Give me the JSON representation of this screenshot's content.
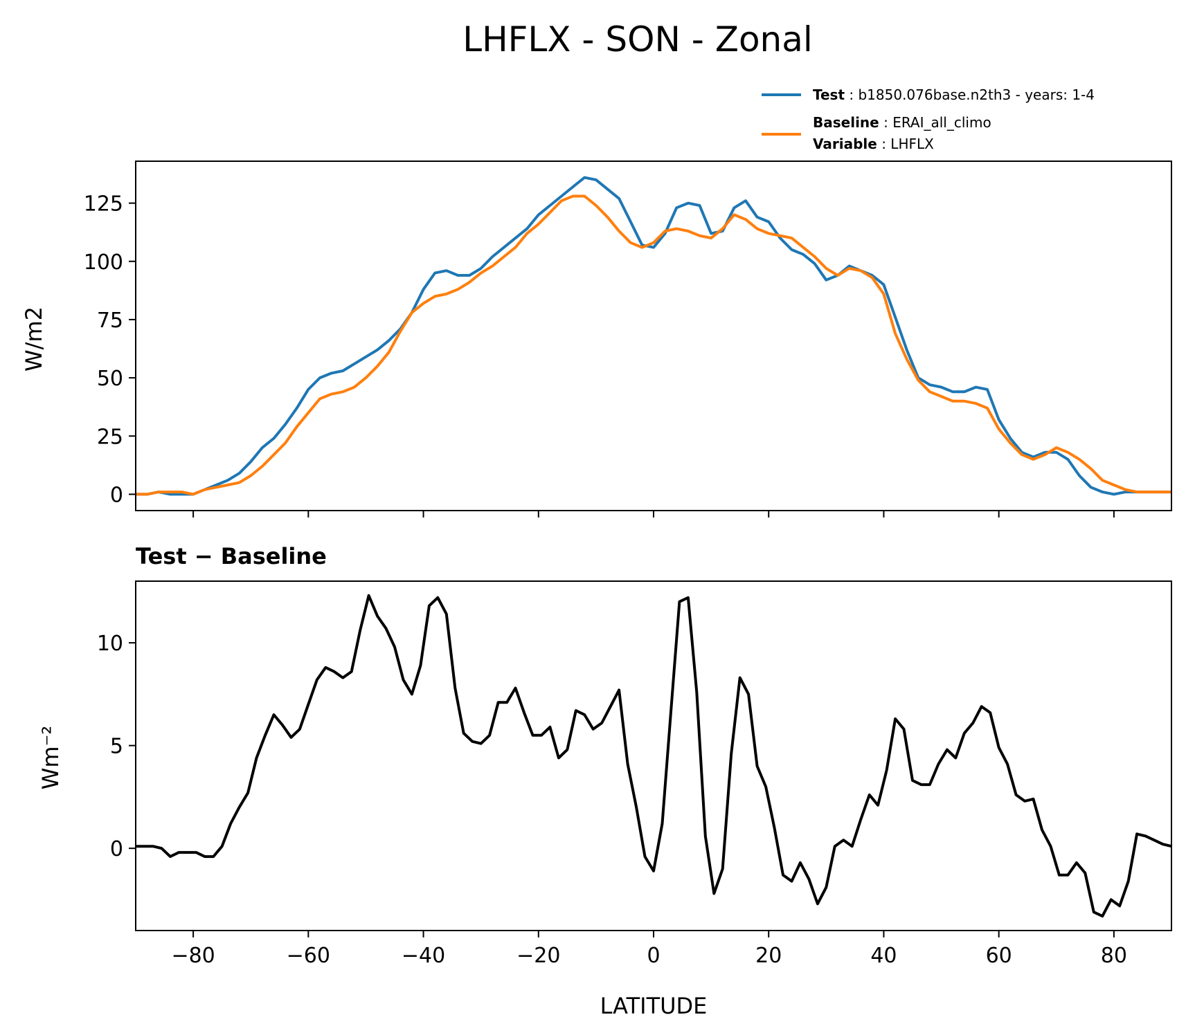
{
  "title": "LHFLX - SON - Zonal",
  "legend": [
    {
      "key": "Test",
      "value": "b1850.076base.n2th3 - years: 1-4",
      "color": "#1f77b4"
    },
    {
      "key": "Baseline",
      "value": "ERAI_all_climo",
      "key2": "Variable",
      "value2": "LHFLX",
      "color": "#ff7f0e"
    }
  ],
  "chart_data": [
    {
      "type": "line",
      "ylabel": "W/m2",
      "xlim": [
        -90,
        90
      ],
      "ylim": [
        -7,
        143
      ],
      "yticks": [
        0,
        25,
        50,
        75,
        100,
        125
      ],
      "yticklabels": [
        "0",
        "25",
        "50",
        "75",
        "100",
        "125"
      ],
      "xticks": [
        -80,
        -60,
        -40,
        -20,
        0,
        20,
        40,
        60,
        80
      ],
      "series": [
        {
          "name": "Test",
          "color": "#1f77b4",
          "x": [
            -90,
            -88,
            -86,
            -84,
            -82,
            -80,
            -78,
            -76,
            -74,
            -72,
            -70,
            -68,
            -66,
            -64,
            -62,
            -60,
            -58,
            -56,
            -54,
            -52,
            -50,
            -48,
            -46,
            -44,
            -42,
            -40,
            -38,
            -36,
            -34,
            -32,
            -30,
            -28,
            -26,
            -24,
            -22,
            -20,
            -18,
            -16,
            -14,
            -12,
            -10,
            -8,
            -6,
            -4,
            -2,
            0,
            2,
            4,
            6,
            8,
            10,
            12,
            14,
            16,
            18,
            20,
            22,
            24,
            26,
            28,
            30,
            32,
            34,
            36,
            38,
            40,
            42,
            44,
            46,
            48,
            50,
            52,
            54,
            56,
            58,
            60,
            62,
            64,
            66,
            68,
            70,
            72,
            74,
            76,
            78,
            80,
            82,
            84,
            86,
            88,
            90
          ],
          "y": [
            0,
            0,
            1,
            0,
            0,
            0,
            2,
            4,
            6,
            9,
            14,
            20,
            24,
            30,
            37,
            45,
            50,
            52,
            53,
            56,
            59,
            62,
            66,
            71,
            78,
            88,
            95,
            96,
            94,
            94,
            97,
            102,
            106,
            110,
            114,
            120,
            124,
            128,
            132,
            136,
            135,
            131,
            127,
            117,
            107,
            106,
            112,
            123,
            125,
            124,
            112,
            113,
            123,
            126,
            119,
            117,
            110,
            105,
            103,
            99,
            92,
            94,
            98,
            96,
            94,
            90,
            76,
            62,
            50,
            47,
            46,
            44,
            44,
            46,
            45,
            32,
            24,
            18,
            16,
            18,
            18,
            15,
            8,
            3,
            1,
            0,
            1,
            1,
            1,
            1,
            1
          ],
          "ytrue": [
            0,
            0,
            0.5,
            0.5,
            0,
            0,
            1.5,
            3.5,
            6,
            9.5,
            14,
            20,
            23,
            29,
            36,
            44,
            50,
            52,
            53,
            57,
            59,
            62,
            66,
            71,
            78,
            86,
            95,
            96,
            94,
            93,
            97,
            102,
            106,
            109,
            113,
            120,
            124,
            128,
            132,
            136,
            135,
            131,
            127,
            117,
            106,
            106,
            112,
            122,
            126,
            124,
            111,
            112,
            123,
            125,
            121,
            116,
            111,
            106,
            104,
            99,
            92,
            94,
            98,
            97,
            95,
            90,
            76,
            60,
            49,
            47,
            46,
            44,
            45,
            46,
            44,
            31,
            23,
            17,
            15,
            18,
            17,
            14,
            7,
            3,
            1,
            0,
            1,
            1,
            1,
            1,
            1
          ]
        },
        {
          "name": "Baseline",
          "color": "#ff7f0e",
          "x": [
            -90,
            -88,
            -86,
            -84,
            -82,
            -80,
            -78,
            -76,
            -74,
            -72,
            -70,
            -68,
            -66,
            -64,
            -62,
            -60,
            -58,
            -56,
            -54,
            -52,
            -50,
            -48,
            -46,
            -44,
            -42,
            -40,
            -38,
            -36,
            -34,
            -32,
            -30,
            -28,
            -26,
            -24,
            -22,
            -20,
            -18,
            -16,
            -14,
            -12,
            -10,
            -8,
            -6,
            -4,
            -2,
            0,
            2,
            4,
            6,
            8,
            10,
            12,
            14,
            16,
            18,
            20,
            22,
            24,
            26,
            28,
            30,
            32,
            34,
            36,
            38,
            40,
            42,
            44,
            46,
            48,
            50,
            52,
            54,
            56,
            58,
            60,
            62,
            64,
            66,
            68,
            70,
            72,
            74,
            76,
            78,
            80,
            82,
            84,
            86,
            88,
            90
          ],
          "y": [
            0,
            0,
            1,
            1,
            1,
            0,
            2,
            3,
            4,
            5,
            8,
            12,
            17,
            22,
            29,
            35,
            41,
            43,
            44,
            46,
            50,
            55,
            61,
            70,
            78,
            82,
            85,
            86,
            88,
            91,
            95,
            98,
            102,
            106,
            112,
            116,
            121,
            126,
            128,
            128,
            124,
            119,
            113,
            108,
            106,
            108,
            113,
            114,
            113,
            111,
            110,
            114,
            120,
            118,
            114,
            112,
            111,
            110,
            106,
            102,
            97,
            94,
            97,
            96,
            93,
            86,
            69,
            58,
            49,
            44,
            42,
            40,
            40,
            39,
            37,
            28,
            22,
            17,
            15,
            17,
            20,
            18,
            15,
            11,
            6,
            4,
            2,
            1,
            1,
            1,
            1
          ]
        }
      ]
    },
    {
      "type": "line",
      "title": "Test − Baseline",
      "ylabel": "Wm⁻²",
      "xlabel": "LATITUDE",
      "xlim": [
        -90,
        90
      ],
      "ylim": [
        -4,
        13
      ],
      "yticks": [
        0,
        5,
        10
      ],
      "yticklabels": [
        "0",
        "5",
        "10"
      ],
      "xticks": [
        -80,
        -60,
        -40,
        -20,
        0,
        20,
        40,
        60,
        80
      ],
      "xticklabels": [
        "−80",
        "−60",
        "−40",
        "−20",
        "0",
        "20",
        "40",
        "60",
        "80"
      ],
      "series": [
        {
          "color": "#000000",
          "x": [
            -90,
            -88.5,
            -87,
            -85.5,
            -84,
            -82.5,
            -81,
            -79.5,
            -78,
            -76.5,
            -75,
            -73.5,
            -72,
            -70.5,
            -69,
            -67.5,
            -66,
            -64.5,
            -63,
            -61.5,
            -60,
            -58.5,
            -57,
            -55.5,
            -54,
            -52.5,
            -51,
            -49.5,
            -48,
            -46.5,
            -45,
            -43.5,
            -42,
            -40.5,
            -39,
            -37.5,
            -36,
            -34.5,
            -33,
            -31.5,
            -30,
            -28.5,
            -27,
            -25.5,
            -24,
            -22.5,
            -21,
            -19.5,
            -18,
            -16.5,
            -15,
            -13.5,
            -12,
            -10.5,
            -9,
            -7.5,
            -6,
            -4.5,
            -3,
            -1.5,
            0,
            1.5,
            3,
            4.5,
            6,
            7.5,
            9,
            10.5,
            12,
            13.5,
            15,
            16.5,
            18,
            19.5,
            21,
            22.5,
            24,
            25.5,
            27,
            28.5,
            30,
            31.5,
            33,
            34.5,
            36,
            37.5,
            39,
            40.5,
            42,
            43.5,
            45,
            46.5,
            48,
            49.5,
            51,
            52.5,
            54,
            55.5,
            57,
            58.5,
            60,
            61.5,
            63,
            64.5,
            66,
            67.5,
            69,
            70.5,
            72,
            73.5,
            75,
            76.5,
            78,
            79.5,
            81,
            82.5,
            84,
            85.5,
            87,
            88.5,
            90
          ],
          "y": [
            0.1,
            0.1,
            0.1,
            0,
            -0.4,
            -0.2,
            -0.2,
            -0.2,
            -0.4,
            -0.4,
            0.1,
            1.2,
            2,
            2.7,
            4.4,
            5.5,
            6.5,
            6,
            5.4,
            5.8,
            7,
            8.2,
            8.8,
            8.6,
            8.3,
            8.6,
            10.6,
            12.3,
            11.3,
            10.7,
            9.8,
            8.2,
            7.5,
            8.9,
            11.8,
            12.2,
            11.4,
            7.8,
            5.6,
            5.2,
            5.1,
            5.5,
            7.1,
            7.1,
            7.8,
            6.6,
            5.5,
            5.5,
            5.9,
            4.4,
            4.8,
            6.7,
            6.5,
            5.8,
            6.1,
            6.9,
            7.7,
            4.1,
            2,
            -0.4,
            -1.1,
            1.2,
            6.6,
            12,
            12.2,
            7.6,
            0.6,
            -2.2,
            -1,
            4.6,
            8.3,
            7.5,
            4,
            3,
            1,
            -1.3,
            -1.6,
            -0.7,
            -1.5,
            -2.7,
            -1.9,
            0.1,
            0.4,
            0.1,
            1.4,
            2.6,
            2.1,
            3.8,
            6.3,
            5.8,
            3.3,
            3.1,
            3.1,
            4.1,
            4.8,
            4.4,
            5.6,
            6.1,
            6.9,
            6.6,
            4.9,
            4.1,
            2.6,
            2.3,
            2.4,
            0.9,
            0.1,
            -1.3,
            -1.3,
            -0.7,
            -1.2,
            -3.1,
            -3.3,
            -2.5,
            -2.8,
            -1.6,
            0.7,
            0.6,
            0.4,
            0.2,
            0.1
          ]
        }
      ]
    }
  ]
}
